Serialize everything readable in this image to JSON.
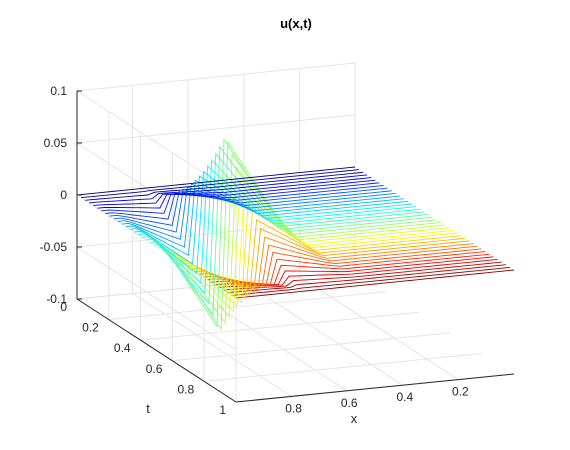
{
  "chart_data": {
    "type": "surface-waterfall",
    "title": "u(x,t)",
    "xlabel": "x",
    "ylabel": "t",
    "zlabel": "",
    "xlim": [
      0,
      1
    ],
    "ylim": [
      0,
      1
    ],
    "zlim": [
      -0.1,
      0.1
    ],
    "x_ticks": [
      0.2,
      0.4,
      0.6,
      0.8
    ],
    "x_tick_labels": [
      "0.2",
      "0.4",
      "0.6",
      "0.8"
    ],
    "y_ticks": [
      0,
      0.2,
      0.4,
      0.6,
      0.8,
      1
    ],
    "y_tick_labels": [
      "0",
      "0.2",
      "0.4",
      "0.6",
      "0.8",
      "1"
    ],
    "z_ticks": [
      -0.1,
      -0.05,
      0,
      0.05,
      0.1
    ],
    "z_tick_labels": [
      "-0.1",
      "-0.05",
      "0",
      "0.05",
      "0.1"
    ],
    "grid": true,
    "colormap": "jet",
    "x_dir": "reverse",
    "n_curves": 40,
    "n_points": 41,
    "peak_value": 0.1,
    "peak_x": 0.75,
    "peak_t": 0.5
  }
}
